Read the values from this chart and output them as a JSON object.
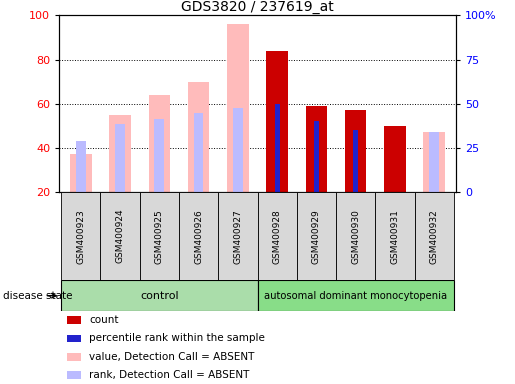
{
  "title": "GDS3820 / 237619_at",
  "samples": [
    "GSM400923",
    "GSM400924",
    "GSM400925",
    "GSM400926",
    "GSM400927",
    "GSM400928",
    "GSM400929",
    "GSM400930",
    "GSM400931",
    "GSM400932"
  ],
  "count_values": [
    null,
    null,
    null,
    null,
    null,
    84,
    59,
    57,
    50,
    null
  ],
  "percentile_rank_values": [
    null,
    null,
    null,
    null,
    null,
    60,
    52,
    48,
    null,
    null
  ],
  "absent_value_bars": [
    37,
    55,
    64,
    70,
    96,
    null,
    null,
    null,
    null,
    47
  ],
  "absent_rank_bars": [
    43,
    51,
    53,
    56,
    58,
    null,
    null,
    null,
    null,
    47
  ],
  "ylim_left": [
    20,
    100
  ],
  "yticks_left": [
    20,
    40,
    60,
    80,
    100
  ],
  "yticks_right": [
    0,
    25,
    50,
    75,
    100
  ],
  "yticklabels_right": [
    "0",
    "25",
    "50",
    "75",
    "100%"
  ],
  "color_count": "#cc0000",
  "color_percentile": "#2222cc",
  "color_absent_value": "#ffbbbb",
  "color_absent_rank": "#bbbbff",
  "bar_width": 0.55,
  "legend_items": [
    {
      "color": "#cc0000",
      "label": "count"
    },
    {
      "color": "#2222cc",
      "label": "percentile rank within the sample"
    },
    {
      "color": "#ffbbbb",
      "label": "value, Detection Call = ABSENT"
    },
    {
      "color": "#bbbbff",
      "label": "rank, Detection Call = ABSENT"
    }
  ],
  "control_label": "control",
  "disease_label": "autosomal dominant monocytopenia",
  "disease_state_label": "disease state"
}
